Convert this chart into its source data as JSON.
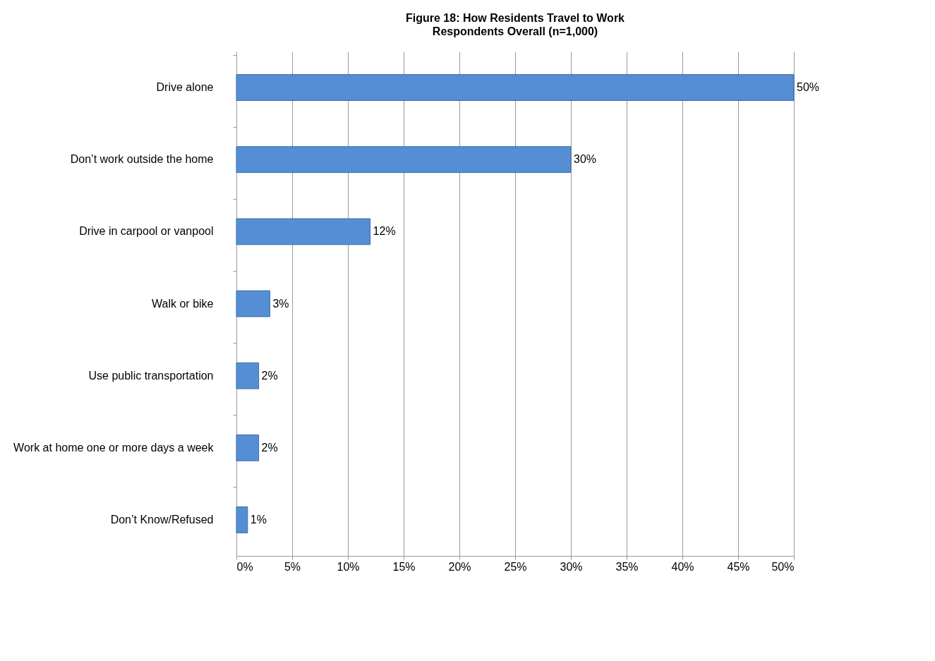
{
  "chart_data": {
    "type": "bar",
    "orientation": "horizontal",
    "title": "Figure 18: How Residents Travel to Work",
    "subtitle": "Respondents Overall (n=1,000)",
    "categories": [
      "Drive alone",
      "Don’t work outside the home",
      "Drive in carpool or vanpool",
      "Walk or bike",
      "Use public transportation",
      "Work at home one or more days a week",
      "Don’t Know/Refused"
    ],
    "values": [
      50,
      30,
      12,
      3,
      2,
      2,
      1
    ],
    "value_labels": [
      "50%",
      "30%",
      "12%",
      "3%",
      "2%",
      "2%",
      "1%"
    ],
    "color": "#558ed5",
    "xlim": [
      0,
      50
    ],
    "xticks": [
      {
        "value": 0,
        "label": "0%"
      },
      {
        "value": 5,
        "label": "5%"
      },
      {
        "value": 10,
        "label": "10%"
      },
      {
        "value": 15,
        "label": "15%"
      },
      {
        "value": 20,
        "label": "20%"
      },
      {
        "value": 25,
        "label": "25%"
      },
      {
        "value": 30,
        "label": "30%"
      },
      {
        "value": 35,
        "label": "35%"
      },
      {
        "value": 40,
        "label": "40%"
      },
      {
        "value": 45,
        "label": "45%"
      },
      {
        "value": 50,
        "label": "50%"
      }
    ],
    "grid": "x"
  }
}
